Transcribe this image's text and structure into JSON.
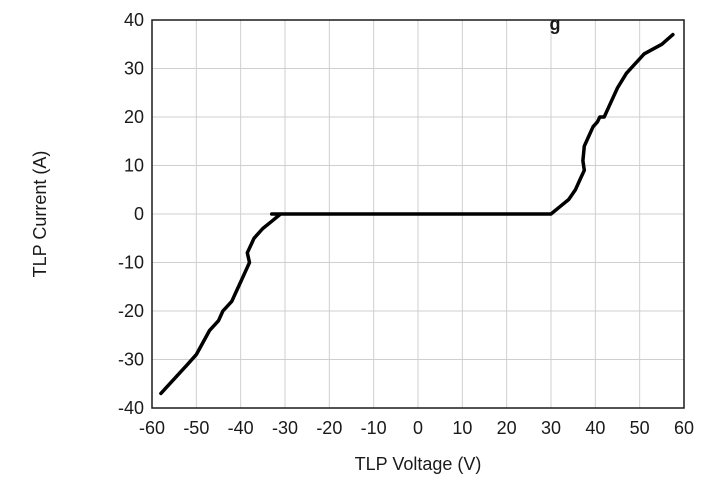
{
  "chart_data": {
    "type": "line",
    "title": "g",
    "xlabel": "TLP Voltage (V)",
    "ylabel": "TLP Current (A)",
    "xlim": [
      -60,
      60
    ],
    "ylim": [
      -40,
      40
    ],
    "xticks": [
      -60,
      -50,
      -40,
      -30,
      -20,
      -10,
      0,
      10,
      20,
      30,
      40,
      50,
      60
    ],
    "yticks": [
      -40,
      -30,
      -20,
      -10,
      0,
      10,
      20,
      30,
      40
    ],
    "grid": true,
    "legend": "none",
    "series": [
      {
        "color": "#000000",
        "x": [
          -58,
          -55,
          -52,
          -50,
          -47,
          -45,
          -44,
          -42,
          -41,
          -40,
          -39,
          -38,
          -38.5,
          -37.5,
          -37,
          -35,
          -33,
          -31,
          -30,
          -33,
          0,
          30,
          32,
          34,
          35.5,
          36.5,
          37.5,
          37.2,
          37.5,
          38.5,
          39.5,
          40.5,
          41,
          42,
          43,
          45,
          47,
          49,
          51,
          53,
          55,
          57.5
        ],
        "y": [
          -37,
          -34,
          -31,
          -29,
          -24,
          -22,
          -20,
          -18,
          -16,
          -14,
          -12,
          -10,
          -8,
          -6,
          -5,
          -3,
          -1.5,
          0,
          0,
          0,
          0,
          0,
          1.5,
          3,
          5,
          7,
          9,
          11,
          14,
          16,
          18,
          19,
          20,
          20,
          22,
          26,
          29,
          31,
          33,
          34,
          35,
          37
        ]
      }
    ]
  }
}
